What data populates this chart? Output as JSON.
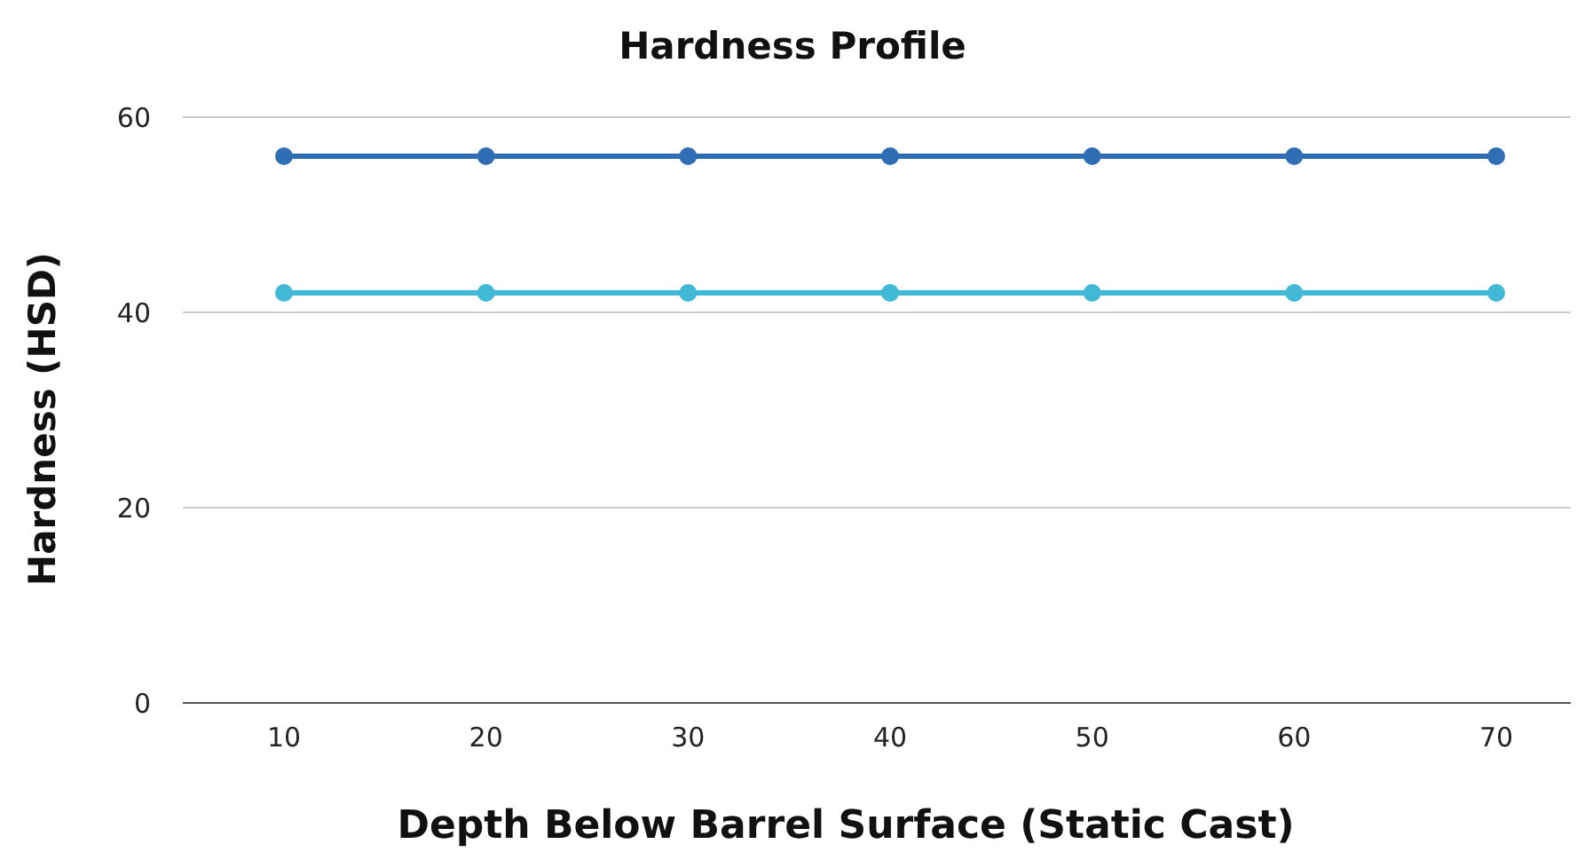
{
  "chart_data": {
    "type": "line",
    "title": "Hardness Profile",
    "xlabel": "Depth Below Barrel Surface (Static Cast)",
    "ylabel": "Hardness (HSD)",
    "categories": [
      "10",
      "20",
      "30",
      "40",
      "50",
      "60",
      "70"
    ],
    "series": [
      {
        "color": "#2f6eb5",
        "values": [
          56,
          56,
          56,
          56,
          56,
          56,
          56
        ]
      },
      {
        "color": "#41b9d6",
        "values": [
          42,
          42,
          42,
          42,
          42,
          42,
          42
        ]
      }
    ],
    "ylim": [
      0,
      60
    ],
    "yticks": [
      0,
      20,
      40,
      60
    ],
    "grid": "y",
    "legend": false,
    "marker": "circle",
    "line_style": "solid"
  }
}
